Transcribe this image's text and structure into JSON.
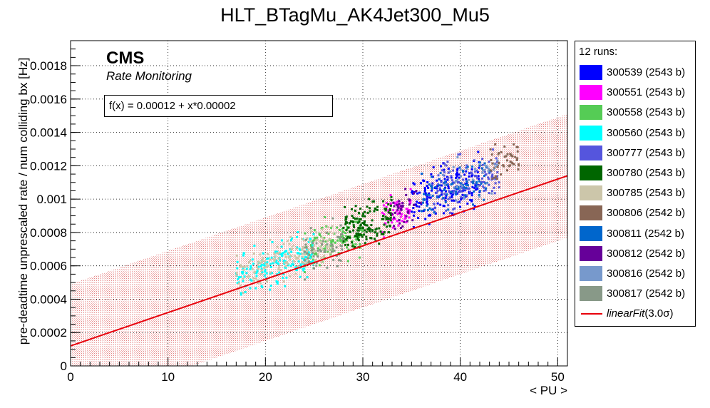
{
  "title": "HLT_BTagMu_AK4Jet300_Mu5",
  "cms_label": "CMS",
  "subtitle": "Rate Monitoring",
  "fit_label": "f(x) = 0.00012 + x*0.00002",
  "legend": {
    "header": "12 runs:",
    "entries": [
      {
        "label": "300539 (2543 b)",
        "color": "#0000ff"
      },
      {
        "label": "300551 (2543 b)",
        "color": "#ff00ff"
      },
      {
        "label": "300558 (2543 b)",
        "color": "#55cc55"
      },
      {
        "label": "300560 (2543 b)",
        "color": "#00ffff"
      },
      {
        "label": "300777 (2543 b)",
        "color": "#5555dd"
      },
      {
        "label": "300780 (2543 b)",
        "color": "#006600"
      },
      {
        "label": "300785 (2543 b)",
        "color": "#ccc6aa"
      },
      {
        "label": "300806 (2542 b)",
        "color": "#886655"
      },
      {
        "label": "300811 (2542 b)",
        "color": "#0066cc"
      },
      {
        "label": "300812 (2542 b)",
        "color": "#660099"
      },
      {
        "label": "300816 (2542 b)",
        "color": "#7799cc"
      },
      {
        "label": "300817 (2542 b)",
        "color": "#889988"
      }
    ],
    "fit_entry": {
      "prefix": "linearFit",
      "suffix": "(3.0σ)",
      "color": "#e8000b"
    }
  },
  "chart_data": {
    "type": "scatter",
    "title": "HLT_BTagMu_AK4Jet300_Mu5",
    "xlabel": "< PU >",
    "ylabel": "pre-deadtime unprescaled rate / num colliding bx [Hz]",
    "xlim": [
      0,
      51
    ],
    "ylim": [
      0,
      0.00195
    ],
    "xticks": [
      0,
      10,
      20,
      30,
      40,
      50
    ],
    "yticks": [
      "0",
      "0.0002",
      "0.0004",
      "0.0006",
      "0.0008",
      "0.001",
      "0.0012",
      "0.0014",
      "0.0016",
      "0.0018"
    ],
    "grid": true,
    "legend_position": "right, outside plot",
    "fit": {
      "intercept": 0.00012,
      "slope": 2e-05,
      "band_sigma": 3.0,
      "band_halfwidth": 0.00037,
      "color": "#e8000b"
    },
    "series": [
      {
        "name": "300539 (2543 b)",
        "color": "#0000ff",
        "x_range": [
          35,
          42
        ],
        "y_center_at_x_mid": 0.00105,
        "y_spread": 0.00012,
        "approx_points": 180
      },
      {
        "name": "300551 (2543 b)",
        "color": "#ff00ff",
        "x_range": [
          32,
          35
        ],
        "y_center_at_x_mid": 0.00092,
        "y_spread": 9e-05,
        "approx_points": 60
      },
      {
        "name": "300558 (2543 b)",
        "color": "#55cc55",
        "x_range": [
          24,
          30
        ],
        "y_center_at_x_mid": 0.00075,
        "y_spread": 0.0001,
        "approx_points": 120
      },
      {
        "name": "300560 (2543 b)",
        "color": "#00ffff",
        "x_range": [
          17,
          25
        ],
        "y_center_at_x_mid": 0.0006,
        "y_spread": 0.00011,
        "approx_points": 180
      },
      {
        "name": "300777 (2543 b)",
        "color": "#5555dd",
        "x_range": [
          37,
          44
        ],
        "y_center_at_x_mid": 0.0011,
        "y_spread": 0.00012,
        "approx_points": 120
      },
      {
        "name": "300780 (2543 b)",
        "color": "#006600",
        "x_range": [
          28,
          33
        ],
        "y_center_at_x_mid": 0.00085,
        "y_spread": 0.0001,
        "approx_points": 150
      },
      {
        "name": "300785 (2543 b)",
        "color": "#ccc6aa",
        "x_range": [
          17,
          27
        ],
        "y_center_at_x_mid": 0.00065,
        "y_spread": 0.0001,
        "approx_points": 160
      },
      {
        "name": "300806 (2542 b)",
        "color": "#886655",
        "x_range": [
          43,
          46
        ],
        "y_center_at_x_mid": 0.00123,
        "y_spread": 0.0001,
        "approx_points": 50
      },
      {
        "name": "300811 (2542 b)",
        "color": "#0066cc",
        "x_range": [
          36,
          43
        ],
        "y_center_at_x_mid": 0.00107,
        "y_spread": 0.00011,
        "approx_points": 80
      },
      {
        "name": "300812 (2542 b)",
        "color": "#660099",
        "x_range": [
          33,
          36
        ],
        "y_center_at_x_mid": 0.00095,
        "y_spread": 9e-05,
        "approx_points": 40
      },
      {
        "name": "300816 (2542 b)",
        "color": "#7799cc",
        "x_range": [
          38,
          44
        ],
        "y_center_at_x_mid": 0.0011,
        "y_spread": 0.0001,
        "approx_points": 40
      },
      {
        "name": "300817 (2542 b)",
        "color": "#889988",
        "x_range": [
          24,
          28
        ],
        "y_center_at_x_mid": 0.0007,
        "y_spread": 0.0001,
        "approx_points": 60
      }
    ]
  }
}
